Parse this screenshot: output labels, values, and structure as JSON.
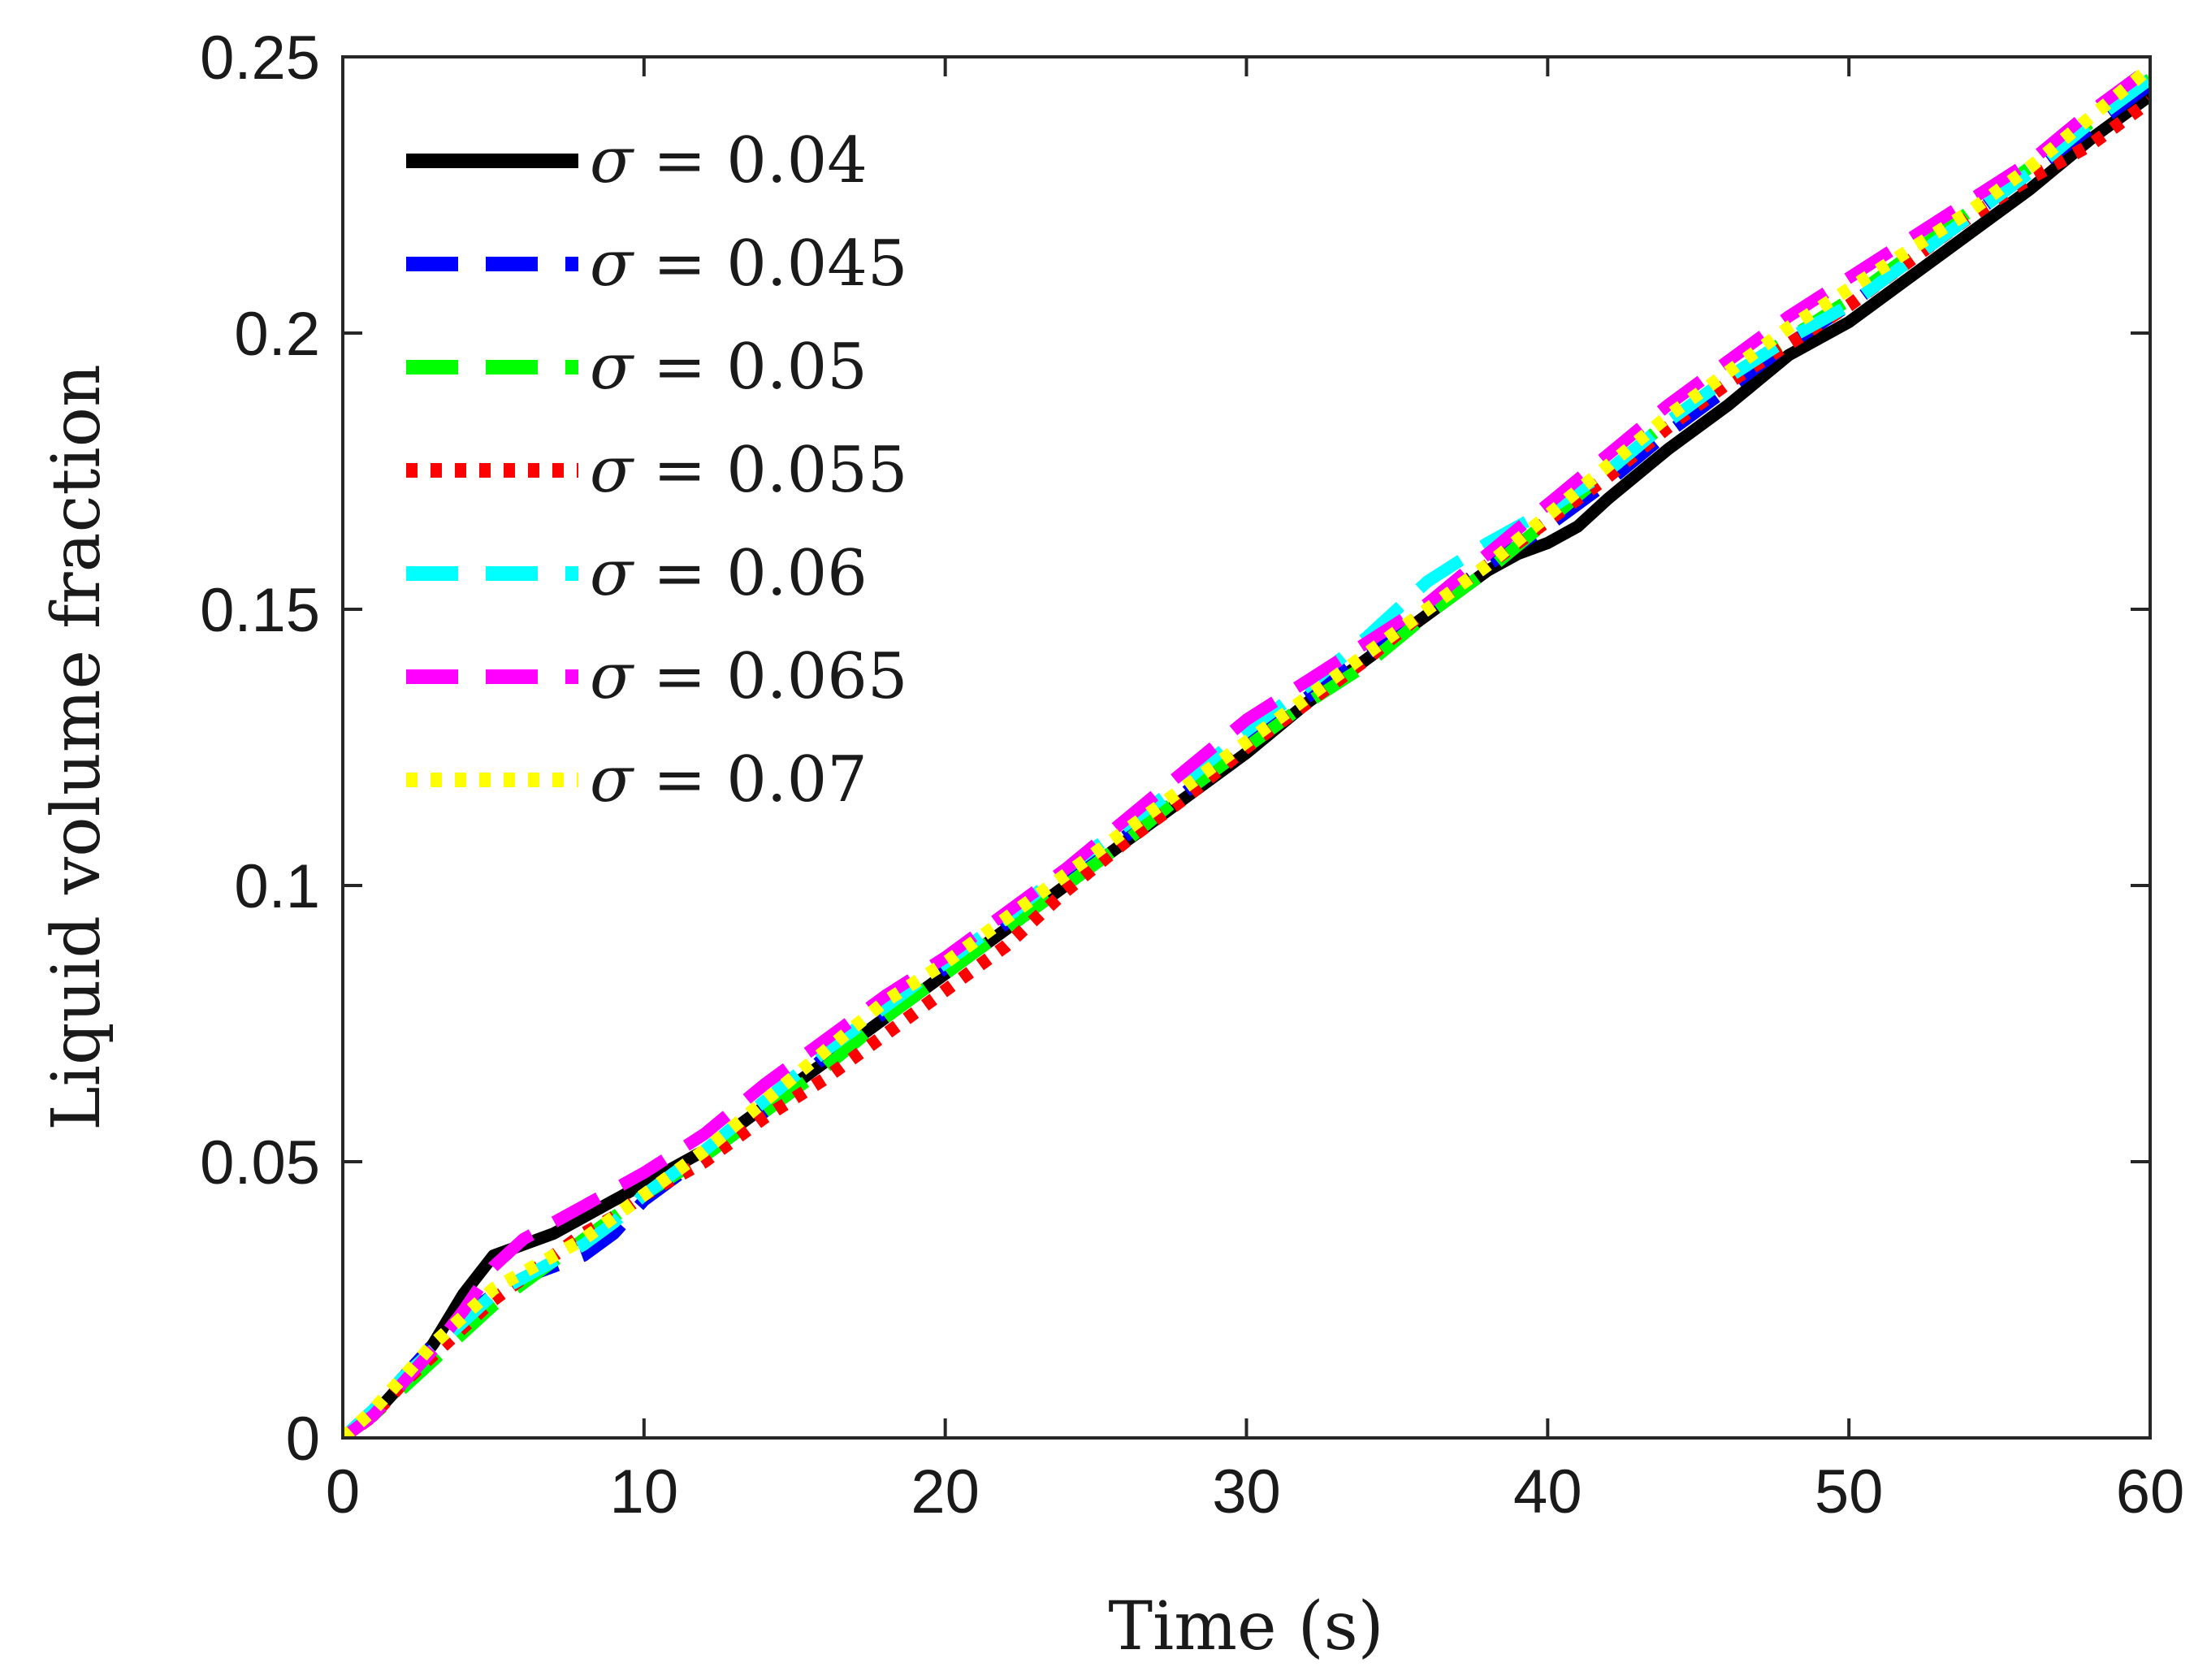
{
  "chart_data": {
    "type": "line",
    "title": "",
    "xlabel": "Time (s)",
    "ylabel": "Liquid volume fraction",
    "xlim": [
      0,
      60
    ],
    "ylim": [
      0,
      0.25
    ],
    "xticks": [
      0,
      10,
      20,
      30,
      40,
      50,
      60
    ],
    "xtick_labels": [
      "0",
      "10",
      "20",
      "30",
      "40",
      "50",
      "60"
    ],
    "yticks": [
      0,
      0.05,
      0.1,
      0.15,
      0.2,
      0.25
    ],
    "ytick_labels": [
      "0",
      "0.05",
      "0.1",
      "0.15",
      "0.2",
      "0.25"
    ],
    "grid": false,
    "legend_position": "top-left",
    "series": [
      {
        "name": "σ = 0.04",
        "legend_symbol": "σ",
        "legend_rest": " = 0.04",
        "color": "#000000",
        "style": "solid",
        "x": [
          0,
          1,
          2,
          3,
          4,
          5,
          6,
          7,
          8,
          9,
          10,
          12,
          14,
          16,
          18,
          20,
          22,
          24,
          26,
          28,
          30,
          32,
          34,
          36,
          38,
          39,
          40,
          41,
          42,
          44,
          46,
          48,
          50,
          52,
          54,
          56,
          58,
          60
        ],
        "y": [
          0,
          0.004,
          0.01,
          0.017,
          0.026,
          0.033,
          0.035,
          0.037,
          0.04,
          0.043,
          0.046,
          0.052,
          0.06,
          0.068,
          0.076,
          0.084,
          0.092,
          0.1,
          0.108,
          0.116,
          0.124,
          0.133,
          0.141,
          0.149,
          0.157,
          0.16,
          0.162,
          0.165,
          0.17,
          0.179,
          0.187,
          0.196,
          0.202,
          0.21,
          0.218,
          0.226,
          0.235,
          0.243
        ]
      },
      {
        "name": "σ = 0.045",
        "legend_symbol": "σ",
        "legend_rest": " = 0.045",
        "color": "#0000ff",
        "style": "dashed",
        "x": [
          0,
          1,
          2,
          3,
          4,
          5,
          6,
          7,
          8,
          9,
          10,
          12,
          14,
          16,
          18,
          20,
          22,
          24,
          26,
          28,
          30,
          32,
          34,
          36,
          38,
          40,
          42,
          44,
          46,
          48,
          50,
          52,
          54,
          56,
          58,
          60
        ],
        "y": [
          0,
          0.005,
          0.011,
          0.017,
          0.022,
          0.026,
          0.029,
          0.031,
          0.033,
          0.037,
          0.043,
          0.051,
          0.059,
          0.069,
          0.077,
          0.085,
          0.093,
          0.101,
          0.109,
          0.117,
          0.126,
          0.134,
          0.142,
          0.15,
          0.158,
          0.165,
          0.173,
          0.182,
          0.19,
          0.198,
          0.205,
          0.213,
          0.221,
          0.229,
          0.237,
          0.245
        ]
      },
      {
        "name": "σ = 0.05",
        "legend_symbol": "σ",
        "legend_rest": " = 0.05",
        "color": "#00ff00",
        "style": "dashed",
        "x": [
          0,
          1,
          2,
          3,
          4,
          5,
          6,
          7,
          8,
          9,
          10,
          12,
          14,
          16,
          18,
          20,
          22,
          24,
          26,
          28,
          30,
          32,
          34,
          36,
          38,
          40,
          42,
          44,
          46,
          48,
          50,
          52,
          54,
          56,
          58,
          60
        ],
        "y": [
          0,
          0.004,
          0.009,
          0.014,
          0.019,
          0.024,
          0.028,
          0.032,
          0.036,
          0.04,
          0.044,
          0.051,
          0.059,
          0.067,
          0.076,
          0.084,
          0.092,
          0.1,
          0.108,
          0.117,
          0.125,
          0.133,
          0.14,
          0.149,
          0.157,
          0.166,
          0.175,
          0.184,
          0.192,
          0.199,
          0.206,
          0.214,
          0.222,
          0.23,
          0.238,
          0.246
        ]
      },
      {
        "name": "σ = 0.055",
        "legend_symbol": "σ",
        "legend_rest": " = 0.055",
        "color": "#ff0000",
        "style": "dotted",
        "x": [
          0,
          1,
          2,
          3,
          4,
          5,
          6,
          7,
          8,
          9,
          10,
          12,
          14,
          16,
          18,
          20,
          22,
          24,
          26,
          28,
          30,
          32,
          34,
          36,
          38,
          40,
          42,
          44,
          46,
          48,
          50,
          52,
          54,
          56,
          58,
          60
        ],
        "y": [
          0,
          0.004,
          0.01,
          0.015,
          0.02,
          0.025,
          0.029,
          0.033,
          0.037,
          0.04,
          0.044,
          0.05,
          0.058,
          0.065,
          0.073,
          0.081,
          0.089,
          0.099,
          0.108,
          0.116,
          0.125,
          0.133,
          0.141,
          0.15,
          0.158,
          0.166,
          0.174,
          0.183,
          0.191,
          0.198,
          0.205,
          0.213,
          0.221,
          0.228,
          0.234,
          0.242
        ]
      },
      {
        "name": "σ = 0.06",
        "legend_symbol": "σ",
        "legend_rest": " = 0.06",
        "color": "#00ffff",
        "style": "dashed",
        "x": [
          0,
          1,
          2,
          3,
          4,
          5,
          6,
          7,
          8,
          9,
          10,
          12,
          14,
          16,
          18,
          20,
          22,
          24,
          26,
          28,
          30,
          32,
          34,
          36,
          38,
          40,
          42,
          44,
          46,
          48,
          50,
          52,
          54,
          56,
          58,
          60
        ],
        "y": [
          0,
          0.005,
          0.011,
          0.016,
          0.021,
          0.026,
          0.029,
          0.032,
          0.035,
          0.039,
          0.044,
          0.052,
          0.061,
          0.07,
          0.078,
          0.086,
          0.094,
          0.103,
          0.111,
          0.119,
          0.128,
          0.136,
          0.145,
          0.155,
          0.162,
          0.168,
          0.175,
          0.184,
          0.192,
          0.199,
          0.205,
          0.213,
          0.221,
          0.229,
          0.238,
          0.246
        ]
      },
      {
        "name": "σ = 0.065",
        "legend_symbol": "σ",
        "legend_rest": " = 0.065",
        "color": "#ff00ff",
        "style": "dashed",
        "x": [
          0,
          1,
          2,
          3,
          4,
          5,
          6,
          7,
          8,
          9,
          10,
          12,
          14,
          16,
          18,
          20,
          22,
          24,
          26,
          28,
          30,
          32,
          34,
          36,
          38,
          40,
          42,
          44,
          46,
          48,
          50,
          52,
          54,
          56,
          58,
          60
        ],
        "y": [
          0,
          0.004,
          0.01,
          0.016,
          0.023,
          0.031,
          0.036,
          0.039,
          0.042,
          0.045,
          0.048,
          0.055,
          0.064,
          0.072,
          0.08,
          0.087,
          0.095,
          0.103,
          0.112,
          0.121,
          0.13,
          0.137,
          0.144,
          0.151,
          0.16,
          0.169,
          0.178,
          0.187,
          0.195,
          0.203,
          0.21,
          0.217,
          0.224,
          0.231,
          0.24,
          0.248
        ]
      },
      {
        "name": "σ = 0.07",
        "legend_symbol": "σ",
        "legend_rest": " = 0.07",
        "color": "#ffff00",
        "style": "dotted",
        "x": [
          0,
          1,
          2,
          3,
          4,
          5,
          6,
          7,
          8,
          9,
          10,
          12,
          14,
          16,
          18,
          20,
          22,
          24,
          26,
          28,
          30,
          32,
          34,
          36,
          38,
          40,
          42,
          44,
          46,
          48,
          50,
          52,
          54,
          56,
          58,
          60
        ],
        "y": [
          0,
          0.005,
          0.011,
          0.017,
          0.022,
          0.027,
          0.03,
          0.033,
          0.036,
          0.04,
          0.044,
          0.052,
          0.061,
          0.07,
          0.079,
          0.086,
          0.094,
          0.102,
          0.11,
          0.118,
          0.126,
          0.134,
          0.142,
          0.15,
          0.158,
          0.167,
          0.176,
          0.185,
          0.193,
          0.201,
          0.208,
          0.215,
          0.222,
          0.23,
          0.239,
          0.248
        ]
      }
    ]
  }
}
